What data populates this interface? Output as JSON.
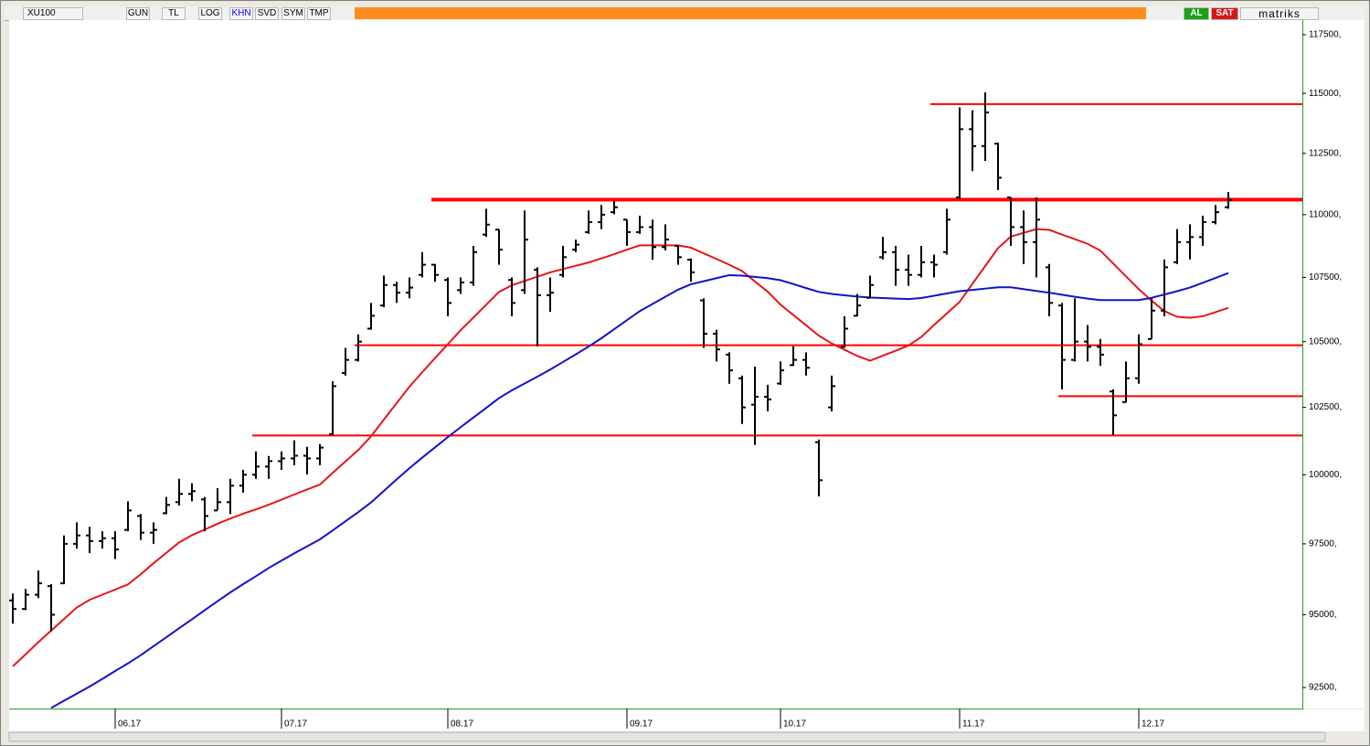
{
  "toolbar": {
    "symbol": "XU100",
    "buttons": [
      "GUN",
      "TL",
      "LOG",
      "KHN",
      "SVD",
      "SYM",
      "TMP"
    ],
    "active_button": 3,
    "buy": "AL",
    "sell": "SAT",
    "brand": "matriks"
  },
  "chart_data": {
    "type": "ohlc",
    "log": true,
    "color": "#000000",
    "categories": [
      null,
      null,
      null,
      null,
      null,
      null,
      null,
      null,
      "06.17",
      null,
      null,
      null,
      null,
      null,
      null,
      null,
      null,
      null,
      null,
      null,
      null,
      "07.17",
      null,
      null,
      null,
      null,
      null,
      null,
      null,
      null,
      null,
      null,
      null,
      null,
      "08.17",
      null,
      null,
      null,
      null,
      null,
      null,
      null,
      null,
      null,
      null,
      null,
      null,
      null,
      "09.17",
      null,
      null,
      null,
      null,
      null,
      null,
      null,
      null,
      null,
      null,
      null,
      "10.17",
      null,
      null,
      null,
      null,
      null,
      null,
      null,
      null,
      null,
      null,
      null,
      null,
      null,
      "11.17",
      null,
      null,
      null,
      null,
      null,
      null,
      null,
      null,
      null,
      null,
      null,
      null,
      null,
      "12.17",
      null,
      null,
      null,
      null,
      null,
      null,
      null
    ],
    "open": [
      95500,
      95200,
      95700,
      96000,
      96100,
      97500,
      97800,
      97600,
      97700,
      98000,
      98500,
      97900,
      98600,
      99000,
      99300,
      99100,
      98700,
      99000,
      99600,
      100000,
      100300,
      100500,
      100600,
      100700,
      100600,
      101500,
      103800,
      104300,
      105500,
      106400,
      107200,
      106900,
      107600,
      108000,
      107400,
      107000,
      107300,
      109200,
      109400,
      107400,
      107000,
      107800,
      106800,
      107600,
      108600,
      109300,
      109700,
      110100,
      109800,
      109300,
      109500,
      108700,
      108750,
      108200,
      106600,
      105300,
      104500,
      103600,
      102600,
      102900,
      103400,
      104100,
      104300,
      101200,
      102500,
      104800,
      106000,
      106700,
      108300,
      108500,
      107800,
      107600,
      108100,
      108500,
      110700,
      113500,
      112800,
      112900,
      110700,
      109500,
      108900,
      107900,
      106400,
      104300,
      105000,
      104800,
      103100,
      102700,
      103600,
      105100,
      106200,
      108100,
      108900,
      109100,
      109700,
      110300
    ],
    "high": [
      95740,
      95900,
      96550,
      96070,
      97800,
      98270,
      98110,
      97950,
      97950,
      99030,
      98570,
      98270,
      99190,
      99850,
      99690,
      99190,
      99510,
      99850,
      100180,
      100860,
      100690,
      100860,
      101270,
      101030,
      101130,
      103490,
      104760,
      105280,
      106500,
      107570,
      107330,
      107500,
      108500,
      108030,
      107500,
      107500,
      108750,
      110240,
      109400,
      107500,
      110170,
      107900,
      107500,
      108750,
      109000,
      110170,
      110390,
      110540,
      109800,
      109960,
      109800,
      109610,
      108750,
      108250,
      106680,
      105460,
      104590,
      103700,
      104040,
      103350,
      104240,
      104820,
      104590,
      101300,
      103700,
      105980,
      106850,
      107570,
      109110,
      108750,
      108400,
      108750,
      108400,
      110240,
      114410,
      114290,
      115040,
      112940,
      110700,
      110170,
      110700,
      108030,
      106500,
      106680,
      105640,
      105100,
      103180,
      104240,
      105280,
      106680,
      108210,
      109420,
      109610,
      109960,
      110390,
      110920
    ],
    "low": [
      94690,
      95160,
      95580,
      94430,
      96070,
      97330,
      97170,
      97330,
      96960,
      97950,
      97640,
      97500,
      98570,
      98880,
      99030,
      97950,
      98720,
      98570,
      99350,
      99850,
      99850,
      100180,
      100350,
      100010,
      100350,
      101470,
      103700,
      104240,
      105460,
      106330,
      106500,
      106680,
      107500,
      107330,
      105980,
      106850,
      107170,
      109110,
      108000,
      105980,
      106850,
      104820,
      106150,
      107500,
      108500,
      109230,
      109420,
      110020,
      108750,
      109230,
      108200,
      108570,
      108000,
      107330,
      104760,
      104240,
      103390,
      101880,
      101100,
      102350,
      103350,
      104070,
      103700,
      99210,
      102350,
      104760,
      105980,
      106680,
      108210,
      107170,
      107170,
      107500,
      107500,
      108400,
      110620,
      111770,
      112190,
      111000,
      108750,
      108030,
      107500,
      105980,
      103180,
      104240,
      104240,
      104070,
      101470,
      102680,
      103390,
      105100,
      105980,
      108030,
      108210,
      108750,
      109610,
      110240
    ],
    "close": [
      95200,
      95700,
      96100,
      95000,
      97500,
      97800,
      97600,
      97700,
      97300,
      98700,
      97900,
      98000,
      98900,
      99300,
      99400,
      98500,
      99000,
      99600,
      100000,
      100300,
      100500,
      100600,
      100700,
      100600,
      101000,
      103300,
      104300,
      105000,
      106000,
      107200,
      106900,
      107100,
      108000,
      107600,
      106500,
      107300,
      108500,
      109600,
      108600,
      106500,
      109000,
      106800,
      106900,
      108300,
      108800,
      109700,
      110000,
      110300,
      109300,
      109500,
      108700,
      109000,
      108300,
      107700,
      105300,
      104700,
      103900,
      102500,
      102900,
      102800,
      103900,
      104300,
      104000,
      99800,
      103300,
      105500,
      106400,
      107200,
      108500,
      107800,
      107600,
      108100,
      108000,
      109800,
      113500,
      112800,
      114200,
      111500,
      109500,
      108900,
      109800,
      106500,
      104300,
      105000,
      104800,
      104500,
      102200,
      103600,
      104900,
      106200,
      107900,
      108900,
      109100,
      109700,
      110100,
      110600
    ],
    "overlays": [
      {
        "color": "#e8141b",
        "values": [
          93220,
          93630,
          94050,
          94450,
          94850,
          95250,
          95520,
          95700,
          95880,
          96060,
          96420,
          96810,
          97180,
          97550,
          97810,
          98010,
          98220,
          98410,
          98580,
          98740,
          98910,
          99090,
          99280,
          99460,
          99640,
          100070,
          100490,
          100910,
          101420,
          102040,
          102660,
          103280,
          103830,
          104370,
          104900,
          105440,
          105930,
          106430,
          106930,
          107190,
          107360,
          107530,
          107700,
          107830,
          107960,
          108090,
          108250,
          108420,
          108600,
          108770,
          108770,
          108770,
          108770,
          108680,
          108450,
          108230,
          108000,
          107750,
          107340,
          106940,
          106430,
          106030,
          105630,
          105230,
          104930,
          104690,
          104450,
          104270,
          104460,
          104650,
          104850,
          105180,
          105640,
          106090,
          106540,
          107250,
          107950,
          108660,
          109120,
          109270,
          109420,
          109390,
          109200,
          109020,
          108830,
          108560,
          108050,
          107540,
          107040,
          106590,
          106180,
          105960,
          105920,
          105980,
          106140,
          106310
        ]
      },
      {
        "color": "#1212cc",
        "values": [
          null,
          null,
          null,
          91810,
          92050,
          92290,
          92530,
          92790,
          93060,
          93320,
          93600,
          93910,
          94220,
          94530,
          94840,
          95160,
          95470,
          95780,
          96070,
          96350,
          96640,
          96900,
          97160,
          97410,
          97660,
          97980,
          98310,
          98640,
          98990,
          99410,
          99830,
          100240,
          100630,
          101010,
          101390,
          101760,
          102120,
          102480,
          102850,
          103140,
          103400,
          103660,
          103930,
          104220,
          104510,
          104810,
          105130,
          105480,
          105830,
          106180,
          106460,
          106740,
          107020,
          107230,
          107350,
          107470,
          107590,
          107570,
          107520,
          107470,
          107390,
          107240,
          107080,
          106930,
          106850,
          106800,
          106750,
          106710,
          106690,
          106670,
          106650,
          106690,
          106780,
          106870,
          106960,
          107010,
          107060,
          107110,
          107110,
          107040,
          106970,
          106900,
          106820,
          106740,
          106670,
          106610,
          106610,
          106610,
          106610,
          106700,
          106830,
          106960,
          107100,
          107290,
          107480,
          107670
        ]
      }
    ],
    "level_color": "#ff0000",
    "levels": [
      {
        "value": 114550,
        "from": 72
      },
      {
        "value": 110610,
        "from": 33,
        "bold": true
      },
      {
        "value": 104860,
        "from": 27
      },
      {
        "value": 102920,
        "from": 82
      },
      {
        "value": 101450,
        "from": 19
      }
    ],
    "ylim": [
      91790,
      118130
    ],
    "yticks": [
      {
        "value": 92500,
        "label": "92500,"
      },
      {
        "value": 95000,
        "label": "95000,"
      },
      {
        "value": 97500,
        "label": "97500,"
      },
      {
        "value": 100000,
        "label": "100000,"
      },
      {
        "value": 102500,
        "label": "102500,"
      },
      {
        "value": 105000,
        "label": "105000,"
      },
      {
        "value": 107500,
        "label": "107500,"
      },
      {
        "value": 110000,
        "label": "110000,"
      },
      {
        "value": 112500,
        "label": "112500,"
      },
      {
        "value": 115000,
        "label": "115000,"
      },
      {
        "value": 117500,
        "label": "117500,"
      }
    ]
  }
}
